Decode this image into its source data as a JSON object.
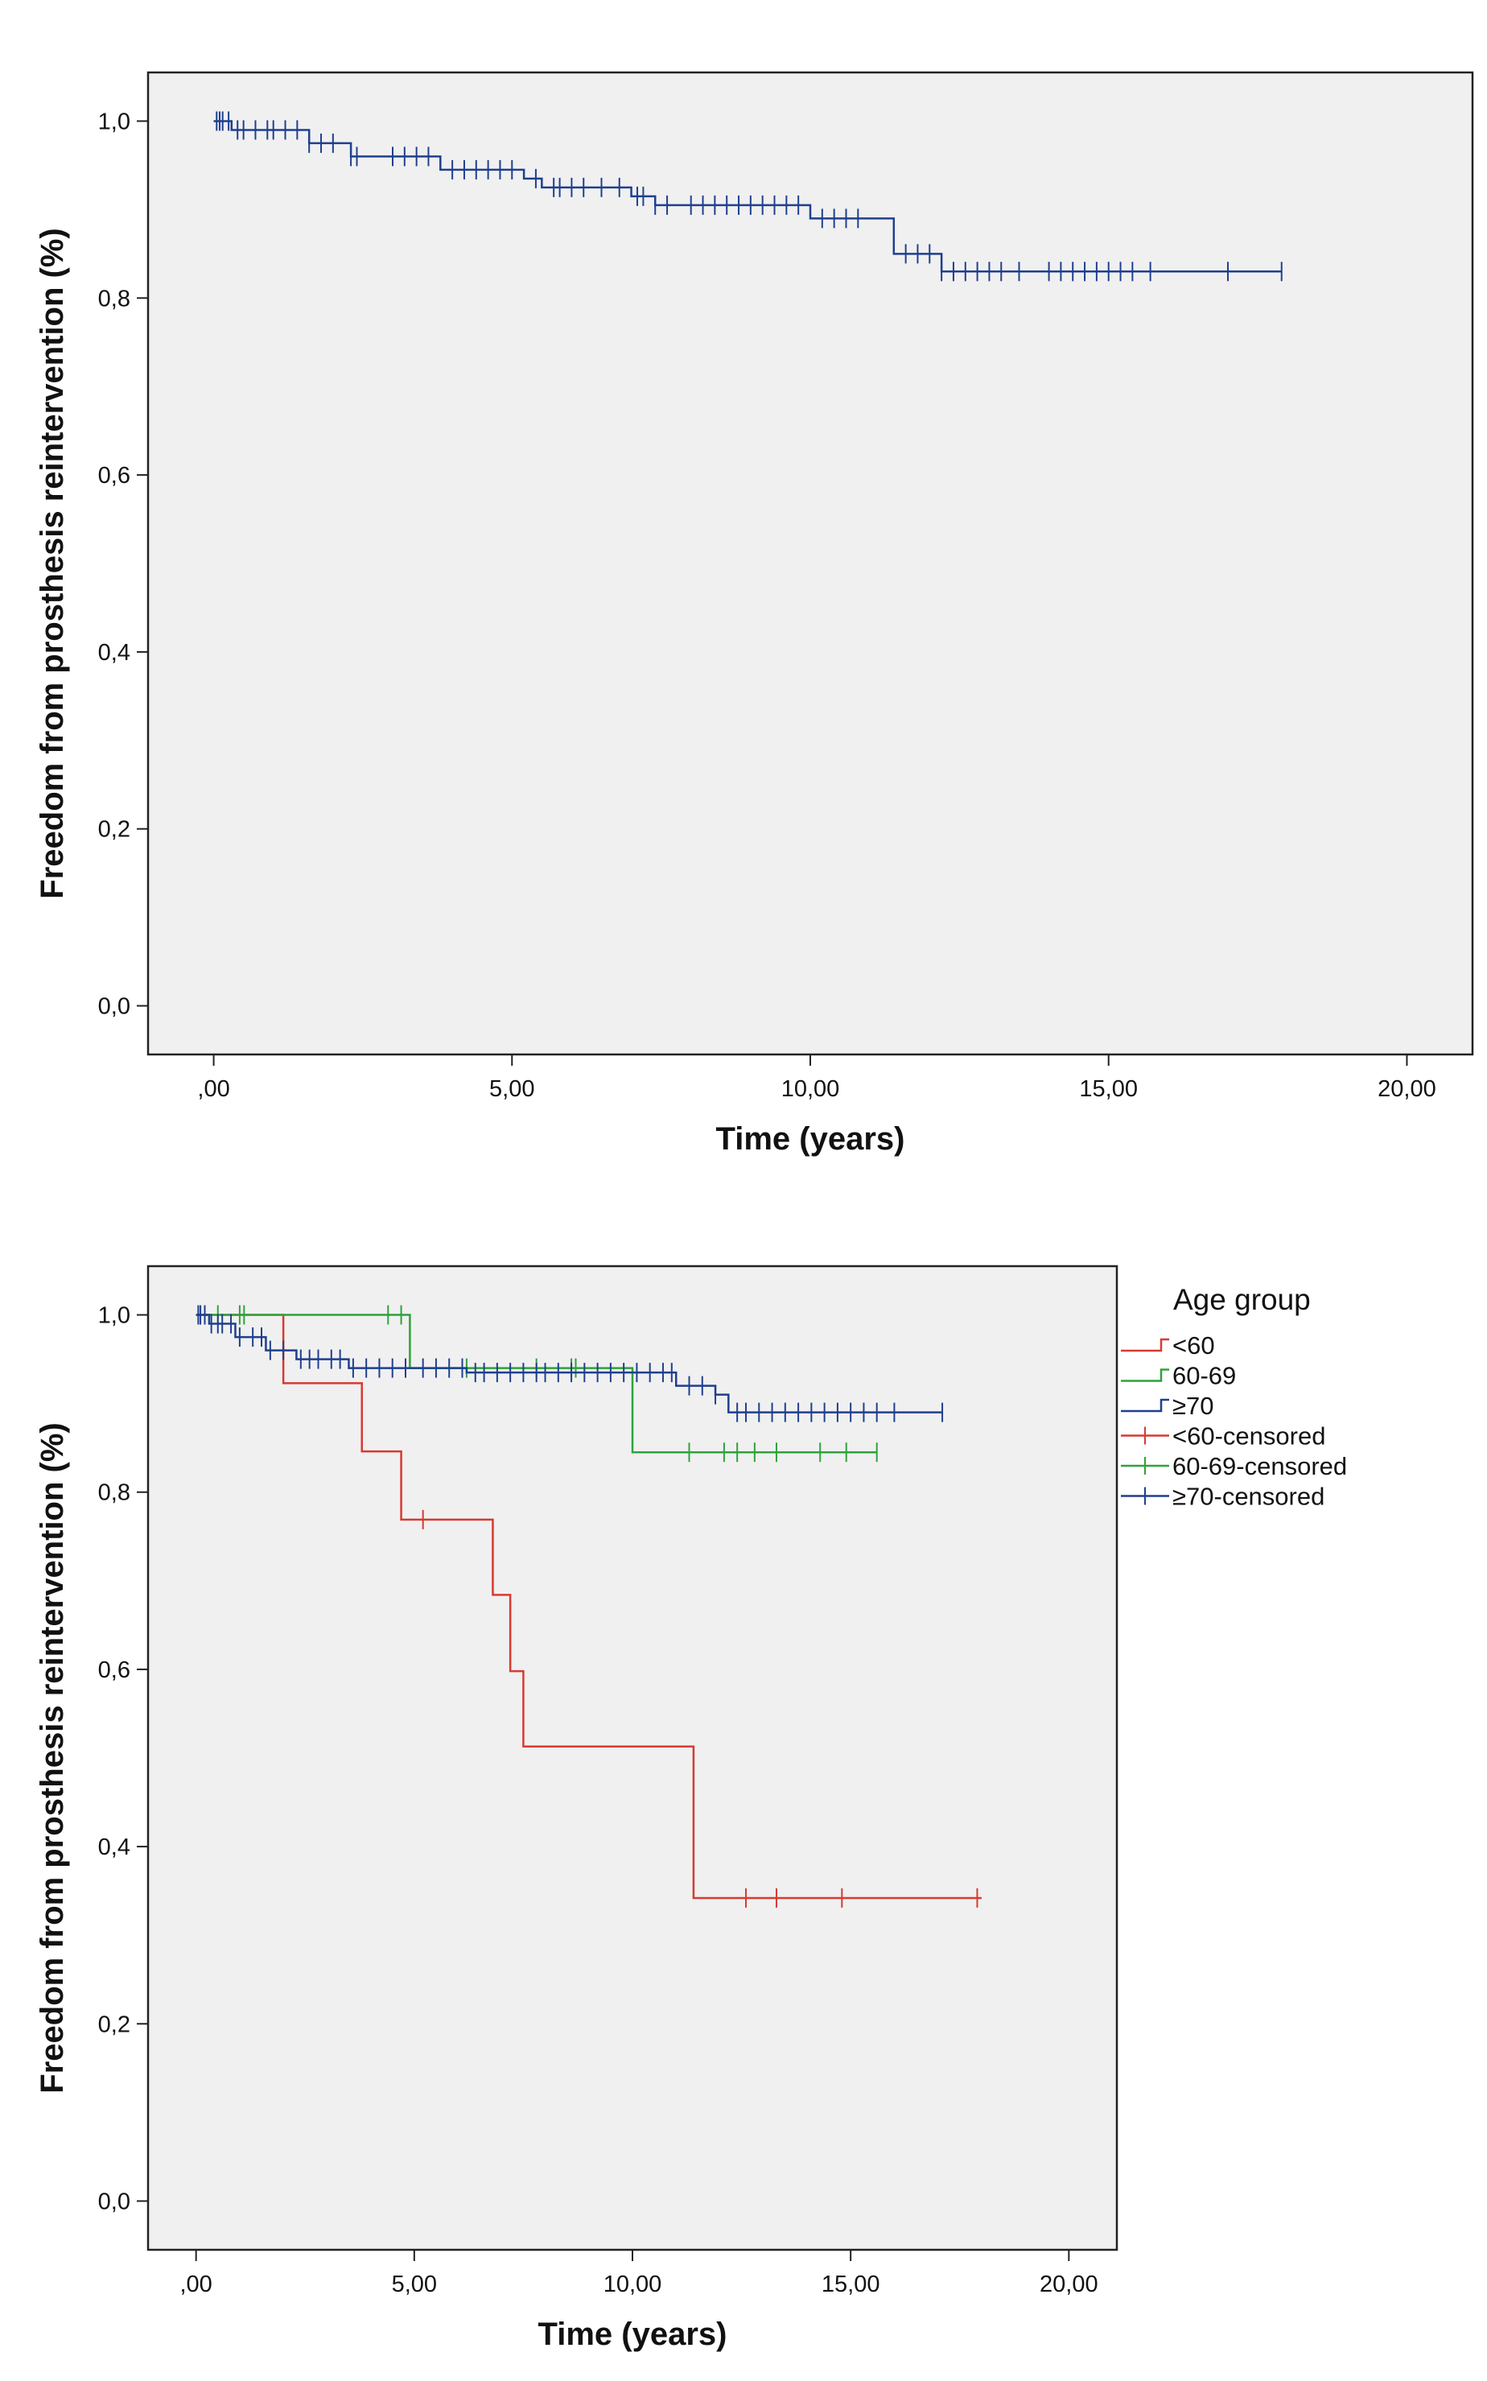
{
  "chart_data": [
    {
      "type": "line",
      "subtype": "kaplan-meier",
      "xlabel": "Time (years)",
      "ylabel": "Freedom from prosthesis reintervention (%)",
      "xlim": [
        -1.1,
        21.1
      ],
      "ylim": [
        -0.055,
        1.055
      ],
      "x_ticks": [
        0,
        5,
        10,
        15,
        20
      ],
      "x_tick_labels": [
        ",00",
        "5,00",
        "10,00",
        "15,00",
        "20,00"
      ],
      "y_ticks": [
        0,
        0.2,
        0.4,
        0.6,
        0.8,
        1.0
      ],
      "y_tick_labels": [
        "0,0",
        "0,2",
        "0,4",
        "0,6",
        "0,8",
        "1,0"
      ],
      "grid": false,
      "background": "#f0f0f0",
      "series": [
        {
          "color": "#1f3f8f",
          "steps": [
            [
              0,
              1.0
            ],
            [
              0.3,
              0.99
            ],
            [
              1.6,
              0.975
            ],
            [
              2.3,
              0.96
            ],
            [
              3.8,
              0.945
            ],
            [
              5.2,
              0.935
            ],
            [
              5.5,
              0.925
            ],
            [
              7.0,
              0.915
            ],
            [
              7.4,
              0.905
            ],
            [
              10.0,
              0.89
            ],
            [
              11.4,
              0.85
            ],
            [
              12.2,
              0.83
            ],
            [
              17.9,
              0.83
            ]
          ],
          "censored": [
            0.05,
            0.1,
            0.15,
            0.25,
            0.4,
            0.5,
            0.7,
            0.9,
            1.0,
            1.2,
            1.4,
            1.6,
            1.8,
            2.0,
            2.3,
            2.4,
            3.0,
            3.2,
            3.4,
            3.6,
            4.0,
            4.2,
            4.4,
            4.6,
            4.8,
            5.0,
            5.4,
            5.7,
            5.8,
            6.0,
            6.2,
            6.5,
            6.8,
            7.1,
            7.2,
            7.4,
            7.6,
            8.0,
            8.2,
            8.4,
            8.6,
            8.8,
            9.0,
            9.2,
            9.4,
            9.6,
            9.8,
            10.2,
            10.4,
            10.6,
            10.8,
            11.6,
            11.8,
            12.0,
            12.2,
            12.4,
            12.6,
            12.8,
            13.0,
            13.2,
            13.5,
            14.0,
            14.2,
            14.4,
            14.6,
            14.8,
            15.0,
            15.2,
            15.4,
            15.7,
            17.0,
            17.9
          ]
        }
      ]
    },
    {
      "type": "line",
      "subtype": "kaplan-meier",
      "xlabel": "Time (years)",
      "ylabel": "Freedom from prosthesis reintervention (%)",
      "xlim": [
        -1.1,
        21.1
      ],
      "ylim": [
        -0.055,
        1.055
      ],
      "x_ticks": [
        0,
        5,
        10,
        15,
        20
      ],
      "x_tick_labels": [
        ",00",
        "5,00",
        "10,00",
        "15,00",
        "20,00"
      ],
      "y_ticks": [
        0,
        0.2,
        0.4,
        0.6,
        0.8,
        1.0
      ],
      "y_tick_labels": [
        "0,0",
        "0,2",
        "0,4",
        "0,6",
        "0,8",
        "1,0"
      ],
      "grid": false,
      "background": "#f0f0f0",
      "legend_title": "Age group",
      "legend_position": "right",
      "legend_labels": [
        "<60",
        "60-69",
        "≥70",
        "<60-censored",
        "60-69-censored",
        "≥70-censored"
      ],
      "series": [
        {
          "name": "<60",
          "color": "#d63a32",
          "steps": [
            [
              0,
              1.0
            ],
            [
              2.0,
              0.923
            ],
            [
              3.8,
              0.846
            ],
            [
              4.7,
              0.769
            ],
            [
              6.8,
              0.684
            ],
            [
              7.2,
              0.598
            ],
            [
              7.5,
              0.513
            ],
            [
              11.4,
              0.342
            ],
            [
              18.0,
              0.342
            ]
          ],
          "censored": [
            5.2,
            12.6,
            13.3,
            14.8,
            17.9
          ]
        },
        {
          "name": "60-69",
          "color": "#2ea33a",
          "steps": [
            [
              0,
              1.0
            ],
            [
              4.9,
              0.94
            ],
            [
              10.0,
              0.845
            ],
            [
              15.6,
              0.845
            ]
          ],
          "censored": [
            0.5,
            1.0,
            1.1,
            4.4,
            4.7,
            6.2,
            7.8,
            8.6,
            8.7,
            11.3,
            12.1,
            12.4,
            12.8,
            13.3,
            14.3,
            14.9,
            15.6
          ]
        },
        {
          "name": "≥70",
          "color": "#1f3f8f",
          "steps": [
            [
              0,
              1.0
            ],
            [
              0.3,
              0.99
            ],
            [
              0.9,
              0.975
            ],
            [
              1.6,
              0.96
            ],
            [
              2.3,
              0.95
            ],
            [
              3.5,
              0.94
            ],
            [
              6.2,
              0.935
            ],
            [
              11.0,
              0.92
            ],
            [
              11.9,
              0.91
            ],
            [
              12.2,
              0.89
            ],
            [
              17.1,
              0.89
            ]
          ],
          "censored": [
            0.05,
            0.1,
            0.2,
            0.35,
            0.5,
            0.6,
            0.8,
            1.0,
            1.3,
            1.5,
            1.7,
            2.0,
            2.4,
            2.6,
            2.8,
            3.1,
            3.3,
            3.6,
            3.9,
            4.2,
            4.5,
            4.8,
            5.2,
            5.5,
            5.8,
            6.1,
            6.4,
            6.6,
            6.9,
            7.2,
            7.5,
            7.8,
            8.0,
            8.3,
            8.6,
            8.9,
            9.2,
            9.5,
            9.8,
            10.1,
            10.4,
            10.7,
            10.9,
            11.3,
            11.6,
            11.9,
            12.4,
            12.6,
            12.9,
            13.2,
            13.5,
            13.8,
            14.1,
            14.4,
            14.7,
            15.0,
            15.3,
            15.6,
            16.0,
            17.1
          ]
        }
      ]
    }
  ]
}
